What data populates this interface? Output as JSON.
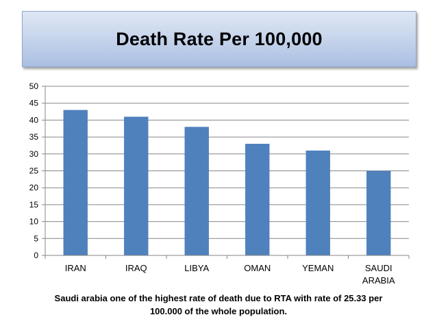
{
  "chart_data": {
    "type": "bar",
    "title": "Death Rate Per 100,000",
    "categories": [
      "IRAN",
      "IRAQ",
      "LIBYA",
      "OMAN",
      "YEMAN",
      "SAUDI ARABIA"
    ],
    "category_lines": [
      [
        "IRAN"
      ],
      [
        "IRAQ"
      ],
      [
        "LIBYA"
      ],
      [
        "OMAN"
      ],
      [
        "YEMAN"
      ],
      [
        "SAUDI",
        "ARABIA"
      ]
    ],
    "values": [
      43,
      41,
      38,
      33,
      31,
      25
    ],
    "ylim": [
      0,
      50
    ],
    "yticks": [
      0,
      5,
      10,
      15,
      20,
      25,
      30,
      35,
      40,
      45,
      50
    ],
    "xlabel": "",
    "ylabel": "",
    "grid": true,
    "legend": "none",
    "bar_color": "#4f81bd",
    "gridline_color": "#868686"
  },
  "caption": {
    "line1": "Saudi arabia one of the highest rate of death due to RTA with rate of 25.33 per",
    "line2": "100.000 of the whole population."
  }
}
